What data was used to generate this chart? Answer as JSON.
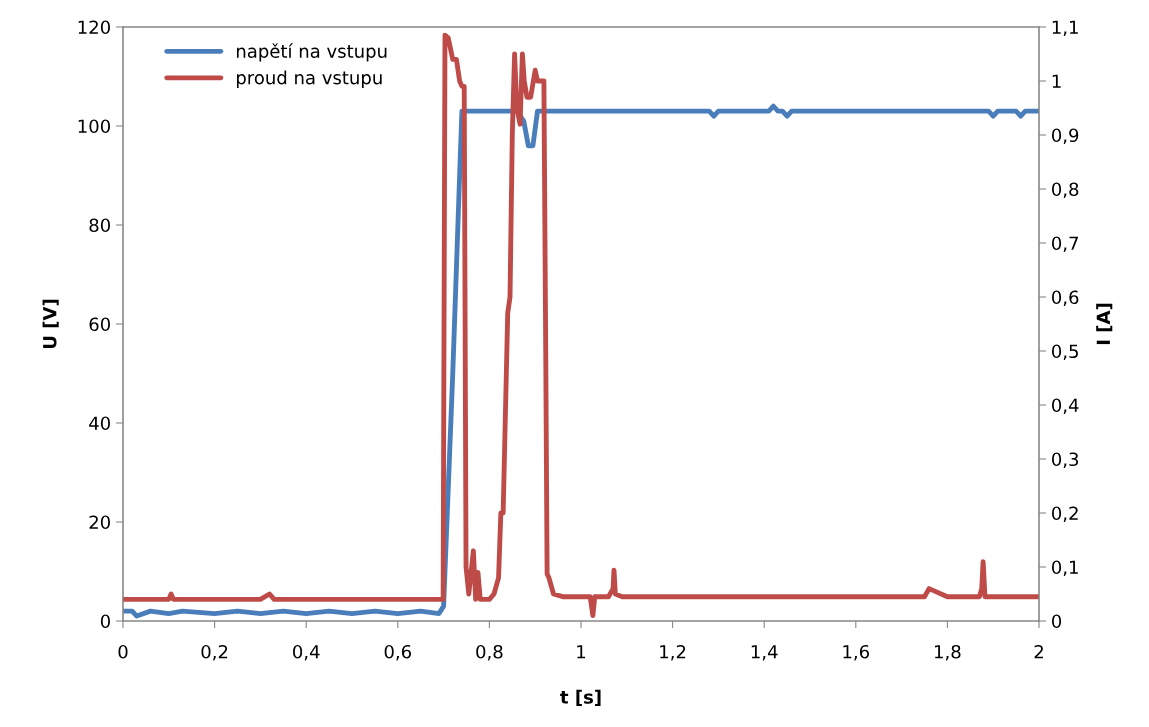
{
  "chart_data": {
    "type": "line",
    "xlabel": "t [s]",
    "ylabel": "U [V]",
    "y2label": "I [A]",
    "xlim": [
      0,
      2
    ],
    "xticks": [
      0,
      {
        "value": 0.2,
        "label": "0,2"
      },
      {
        "value": 0.4,
        "label": "0,4"
      },
      {
        "value": 0.6,
        "label": "0,6"
      },
      {
        "value": 0.8,
        "label": "0,8"
      },
      1,
      {
        "value": 1.2,
        "label": "1,2"
      },
      {
        "value": 1.4,
        "label": "1,4"
      },
      {
        "value": 1.6,
        "label": "1,6"
      },
      {
        "value": 1.8,
        "label": "1,8"
      },
      2
    ],
    "ylim": [
      0,
      120
    ],
    "yticks": [
      0,
      20,
      40,
      60,
      80,
      100,
      120
    ],
    "y2lim": [
      0,
      1.1
    ],
    "y2ticks": [
      0,
      {
        "value": 0.1,
        "label": "0,1"
      },
      {
        "value": 0.2,
        "label": "0,2"
      },
      {
        "value": 0.3,
        "label": "0,3"
      },
      {
        "value": 0.4,
        "label": "0,4"
      },
      {
        "value": 0.5,
        "label": "0,5"
      },
      {
        "value": 0.6,
        "label": "0,6"
      },
      {
        "value": 0.7,
        "label": "0,7"
      },
      {
        "value": 0.8,
        "label": "0,8"
      },
      {
        "value": 0.9,
        "label": "0,9"
      },
      1,
      {
        "value": 1.1,
        "label": "1,1"
      }
    ],
    "grid": false,
    "legend": "top left",
    "marker": "none",
    "line_style": "solid",
    "series": [
      {
        "name": "napětí na vstupu",
        "color": "#4a7ebb",
        "x": [
          0,
          0.02,
          0.03,
          0.06,
          0.1,
          0.13,
          0.2,
          0.25,
          0.3,
          0.35,
          0.4,
          0.45,
          0.5,
          0.55,
          0.6,
          0.65,
          0.69,
          0.7,
          0.72,
          0.735,
          0.74,
          0.8,
          0.86,
          0.875,
          0.885,
          0.895,
          0.905,
          1.0,
          1.2,
          1.28,
          1.29,
          1.3,
          1.41,
          1.42,
          1.43,
          1.44,
          1.45,
          1.46,
          1.6,
          1.8,
          1.89,
          1.9,
          1.91,
          1.95,
          1.96,
          1.97,
          2.0
        ],
        "values": [
          2,
          2,
          1,
          2,
          1.5,
          2,
          1.5,
          2,
          1.5,
          2,
          1.5,
          2,
          1.5,
          2,
          1.5,
          2,
          1.5,
          3,
          50,
          90,
          103,
          103,
          103,
          101,
          96,
          96,
          103,
          103,
          103,
          103,
          102,
          103,
          103,
          104,
          103,
          103,
          102,
          103,
          103,
          103,
          103,
          102,
          103,
          103,
          102,
          103,
          103
        ]
      },
      {
        "name": "proud na vstupu",
        "color": "#be4b48",
        "axis": "y2",
        "x": [
          0,
          0.1,
          0.105,
          0.11,
          0.2,
          0.3,
          0.32,
          0.33,
          0.4,
          0.5,
          0.6,
          0.69,
          0.699,
          0.703,
          0.71,
          0.72,
          0.728,
          0.735,
          0.74,
          0.745,
          0.749,
          0.755,
          0.765,
          0.77,
          0.775,
          0.78,
          0.79,
          0.8,
          0.81,
          0.82,
          0.825,
          0.83,
          0.84,
          0.845,
          0.85,
          0.855,
          0.86,
          0.867,
          0.872,
          0.876,
          0.882,
          0.89,
          0.9,
          0.905,
          0.91,
          0.915,
          0.919,
          0.923,
          0.926,
          0.93,
          0.94,
          0.96,
          1.0,
          1.02,
          1.026,
          1.03,
          1.06,
          1.07,
          1.072,
          1.075,
          1.09,
          1.2,
          1.3,
          1.4,
          1.5,
          1.6,
          1.7,
          1.75,
          1.76,
          1.8,
          1.87,
          1.875,
          1.878,
          1.882,
          1.9,
          2.0
        ],
        "values": [
          0.04,
          0.04,
          0.05,
          0.04,
          0.04,
          0.04,
          0.05,
          0.04,
          0.04,
          0.04,
          0.04,
          0.04,
          0.04,
          1.085,
          1.08,
          1.04,
          1.04,
          1.0,
          0.99,
          0.99,
          0.1,
          0.05,
          0.13,
          0.04,
          0.09,
          0.04,
          0.04,
          0.04,
          0.05,
          0.08,
          0.2,
          0.2,
          0.57,
          0.6,
          0.9,
          1.05,
          0.95,
          0.92,
          1.05,
          1.0,
          0.97,
          0.97,
          1.02,
          1.0,
          1.0,
          1.0,
          1.0,
          0.5,
          0.087,
          0.08,
          0.05,
          0.045,
          0.045,
          0.045,
          0.01,
          0.045,
          0.045,
          0.06,
          0.094,
          0.05,
          0.045,
          0.045,
          0.045,
          0.045,
          0.045,
          0.045,
          0.045,
          0.045,
          0.06,
          0.045,
          0.045,
          0.06,
          0.11,
          0.045,
          0.045,
          0.045
        ]
      }
    ]
  }
}
